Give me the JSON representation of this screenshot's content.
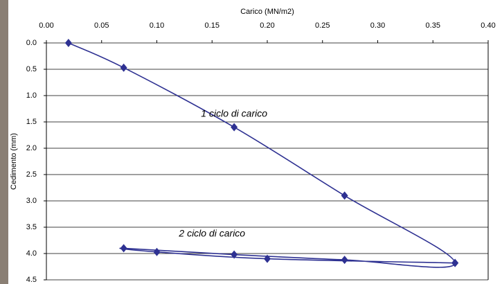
{
  "chart_data": {
    "type": "line",
    "x_label": "Carico (MN/m2)",
    "y_label": "Cedimento (mm)",
    "x": [
      0.02,
      0.07,
      0.17,
      0.27,
      0.37,
      0.27,
      0.17,
      0.07,
      0.1,
      0.2,
      0.37
    ],
    "values": [
      0.0,
      0.47,
      1.6,
      2.9,
      4.18,
      4.12,
      4.02,
      3.9,
      3.97,
      4.1,
      4.18
    ],
    "color": "#2e3192",
    "xlim": [
      0,
      0.4
    ],
    "xticks": [
      {
        "value": 0,
        "label": "0.00"
      },
      0.05,
      {
        "value": 0.1,
        "label": "0.10"
      },
      0.15,
      {
        "value": 0.2,
        "label": "0.20"
      },
      0.25,
      {
        "value": 0.3,
        "label": "0.30"
      },
      0.35,
      {
        "value": 0.4,
        "label": "0.40"
      }
    ],
    "ylim": [
      0,
      4.5
    ],
    "y_inverted": true,
    "yticks": [
      {
        "value": 0,
        "label": "0.0"
      },
      0.5,
      {
        "value": 1,
        "label": "1.0"
      },
      1.5,
      {
        "value": 2,
        "label": "2.0"
      },
      2.5,
      {
        "value": 3,
        "label": "3.0"
      },
      3.5,
      {
        "value": 4,
        "label": "4.0"
      },
      4.5
    ],
    "grid": true,
    "annotations": [
      {
        "text": "1  ciclo di carico",
        "x": 0.17,
        "y": 1.35
      },
      {
        "text": "2  ciclo di carico",
        "x": 0.15,
        "y": 3.63
      }
    ]
  }
}
